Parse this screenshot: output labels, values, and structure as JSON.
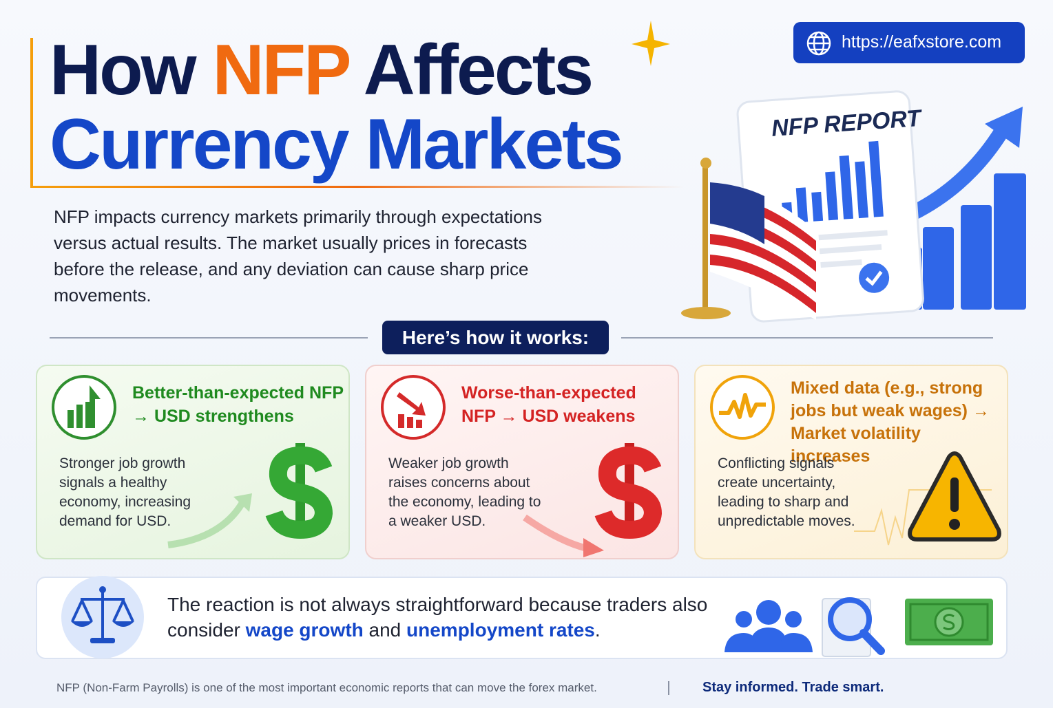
{
  "header": {
    "title": {
      "line1": [
        "How",
        "NFP",
        "Affects"
      ],
      "line2": [
        "Currency",
        "Markets"
      ]
    },
    "url": "https://eafxstore.com"
  },
  "illustration": {
    "label": "NFP REPORT"
  },
  "intro": "NFP impacts currency markets primarily through expectations versus actual results. The market usually prices in forecasts before the release, and any deviation can cause sharp price movements.",
  "section_label": "Here’s how it works:",
  "cards": [
    {
      "title": "Better-than-expected NFP → USD strengthens",
      "body": "Stronger job growth signals a healthy economy, increasing demand for USD."
    },
    {
      "title": "Worse-than-expected NFP → USD weakens",
      "body": "Weaker job growth raises concerns about the economy, leading to a weaker USD."
    },
    {
      "title": "Mixed data (e.g., strong jobs but weak wages) → Market volatility increases",
      "body": "Conflicting signals create uncertainty, leading to sharp and unpredictable moves."
    }
  ],
  "note": [
    "The reaction is not always straightforward because traders also consider",
    "wage growth",
    "and",
    "unemployment rates",
    "."
  ],
  "footer": {
    "text": "NFP (Non-Farm Payrolls) is one of the most important economic reports that can move the forex market.",
    "tagline": "Stay informed. Trade smart."
  }
}
